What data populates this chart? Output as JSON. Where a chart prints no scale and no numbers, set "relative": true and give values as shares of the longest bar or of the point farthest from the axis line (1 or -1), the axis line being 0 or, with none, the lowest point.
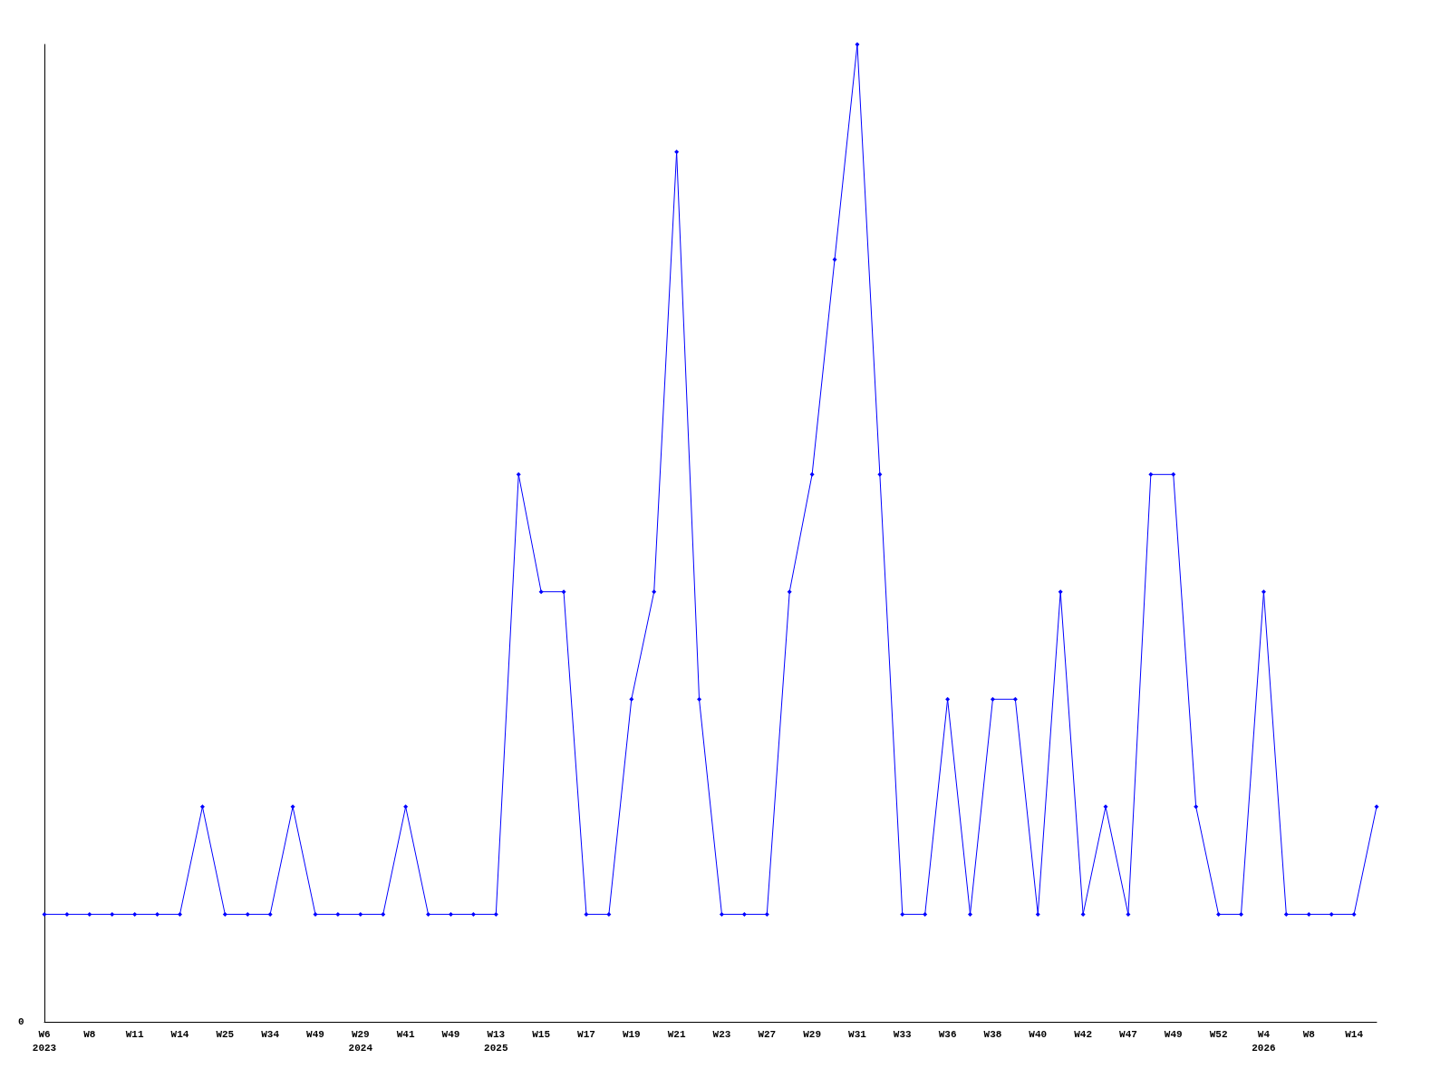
{
  "chart_data": {
    "type": "line",
    "relative": true,
    "grid": false,
    "marker": "diamond",
    "line_style": "solid",
    "categories": [
      "W6\n2023",
      null,
      "W8",
      null,
      "W11",
      null,
      "W14",
      null,
      "W25",
      null,
      "W34",
      null,
      "W49",
      null,
      "W29\n2024",
      null,
      "W41",
      null,
      "W49",
      null,
      "W13\n2025",
      null,
      "W15",
      null,
      "W17",
      null,
      "W19",
      null,
      "W21",
      null,
      "W23",
      null,
      "W27",
      null,
      "W29",
      null,
      "W31",
      null,
      "W33",
      null,
      "W36",
      null,
      "W38",
      null,
      "W40",
      null,
      "W42",
      null,
      "W47",
      null,
      "W49",
      null,
      "W52",
      null,
      "W4\n2026",
      null,
      "W8",
      null,
      "W14",
      null
    ],
    "series": [
      {
        "color": "#0000ff",
        "values": [
          0.11,
          0.11,
          0.11,
          0.11,
          0.11,
          0.11,
          0.11,
          0.22,
          0.11,
          0.11,
          0.11,
          0.22,
          0.11,
          0.11,
          0.11,
          0.11,
          0.22,
          0.11,
          0.11,
          0.11,
          0.11,
          0.56,
          0.44,
          0.44,
          0.11,
          0.11,
          0.33,
          0.44,
          0.89,
          0.33,
          0.11,
          0.11,
          0.11,
          0.44,
          0.56,
          0.78,
          1,
          0.56,
          0.11,
          0.11,
          0.33,
          0.11,
          0.33,
          0.33,
          0.11,
          0.44,
          0.11,
          0.22,
          0.11,
          0.56,
          0.56,
          0.22,
          0.11,
          0.11,
          0.44,
          0.11,
          0.11,
          0.11,
          0.11,
          0.22
        ]
      }
    ],
    "annotations": [
      "0"
    ]
  }
}
